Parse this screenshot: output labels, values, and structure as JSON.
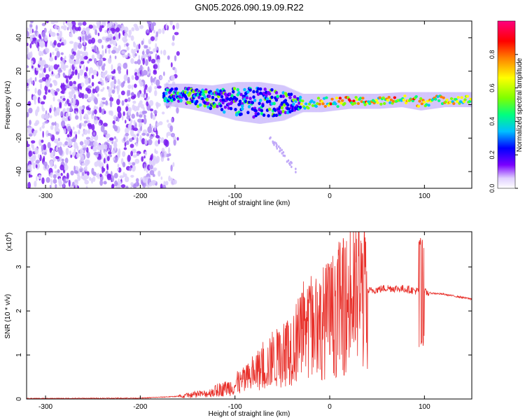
{
  "title": "GN05.2026.090.19.09.R22",
  "colors": {
    "snr_line": "#e8302a",
    "axis": "#000000",
    "colorbar": [
      "#ffffff",
      "#e0d0ff",
      "#7a00ff",
      "#0000ff",
      "#00bfff",
      "#00ff7f",
      "#7fff00",
      "#ffff00",
      "#ff7f00",
      "#ff0000",
      "#ff007f"
    ]
  },
  "chart_data": [
    {
      "type": "heatmap",
      "name": "spectrogram",
      "title": "GN05.2026.090.19.09.R22",
      "xlabel": "Height of straight line (km)",
      "ylabel": "Frequency (Hz)",
      "xlim": [
        -320,
        150
      ],
      "ylim": [
        -50,
        50
      ],
      "xticks": [
        -300,
        -200,
        -100,
        0,
        100
      ],
      "yticks": [
        -40,
        -20,
        0,
        20,
        40
      ],
      "noise_region": {
        "x": [
          -320,
          -160
        ],
        "y": [
          -50,
          50
        ],
        "amplitude": 0.15
      },
      "ridge": [
        {
          "x": -175,
          "y": 6,
          "width": 5,
          "amplitude": 0.5
        },
        {
          "x": -150,
          "y": 5,
          "width": 6,
          "amplitude": 0.55
        },
        {
          "x": -125,
          "y": 3,
          "width": 7,
          "amplitude": 0.55
        },
        {
          "x": -100,
          "y": 2,
          "width": 10,
          "amplitude": 0.5
        },
        {
          "x": -75,
          "y": 1,
          "width": 11,
          "amplitude": 0.5
        },
        {
          "x": -50,
          "y": 1,
          "width": 9,
          "amplitude": 0.5
        },
        {
          "x": -30,
          "y": 1,
          "width": 4,
          "amplitude": 0.6
        },
        {
          "x": -10,
          "y": 1,
          "width": 4,
          "amplitude": 0.7
        },
        {
          "x": 20,
          "y": 2,
          "width": 3,
          "amplitude": 0.9
        },
        {
          "x": 50,
          "y": 2,
          "width": 3,
          "amplitude": 0.7
        },
        {
          "x": 75,
          "y": 3,
          "width": 3,
          "amplitude": 0.85
        },
        {
          "x": 95,
          "y": 2,
          "width": 4,
          "amplitude": 0.75
        },
        {
          "x": 120,
          "y": 3,
          "width": 3,
          "amplitude": 0.7
        },
        {
          "x": 150,
          "y": 3,
          "width": 3,
          "amplitude": 0.65
        }
      ],
      "streak": {
        "x": [
          -65,
          -35
        ],
        "y": [
          -18,
          -40
        ]
      },
      "colorbar": {
        "label": "Normalized spectral amplitude",
        "range": [
          0,
          1
        ],
        "ticks": [
          "0.0",
          "0.2",
          "0.4",
          "0.6",
          "0.8"
        ]
      }
    },
    {
      "type": "line",
      "name": "snr",
      "xlabel": "Height of straight line (km)",
      "ylabel": "SNR (10 * v/v)",
      "yexponent_label": "(x10",
      "yexponent_power": "4",
      "yexponent_close": ")",
      "xlim": [
        -320,
        150
      ],
      "ylim": [
        0,
        3.8
      ],
      "xticks": [
        -300,
        -200,
        -100,
        0,
        100
      ],
      "yticks": [
        0,
        1,
        2,
        3
      ],
      "envelope": [
        {
          "x": -320,
          "y": 0.0
        },
        {
          "x": -200,
          "y": 0.01
        },
        {
          "x": -160,
          "y": 0.05
        },
        {
          "x": -130,
          "y": 0.12
        },
        {
          "x": -100,
          "y": 0.3
        },
        {
          "x": -80,
          "y": 0.55
        },
        {
          "x": -60,
          "y": 0.85
        },
        {
          "x": -40,
          "y": 1.2
        },
        {
          "x": -20,
          "y": 1.55
        },
        {
          "x": 0,
          "y": 1.85
        },
        {
          "x": 20,
          "y": 2.2
        },
        {
          "x": 40,
          "y": 2.45
        },
        {
          "x": 60,
          "y": 2.52
        },
        {
          "x": 80,
          "y": 2.5
        },
        {
          "x": 100,
          "y": 2.42
        },
        {
          "x": 120,
          "y": 2.38
        },
        {
          "x": 150,
          "y": 2.27
        }
      ],
      "spike": {
        "x": 97,
        "min": 1.05,
        "max": 3.75
      }
    }
  ]
}
